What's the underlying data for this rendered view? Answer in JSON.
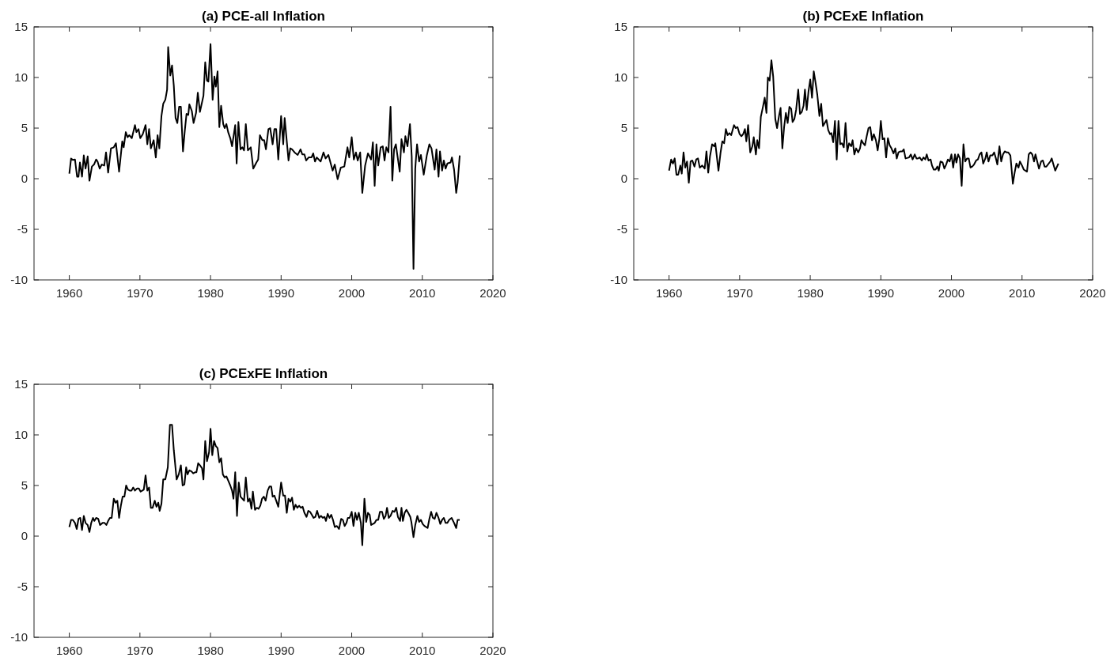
{
  "chart_data": [
    {
      "type": "line",
      "title": "(a) PCE-all Inflation",
      "color": "#000000",
      "xlim": [
        1955,
        2020
      ],
      "xticks": [
        1960,
        1970,
        1980,
        1990,
        2000,
        2010,
        2020
      ],
      "ylim": [
        -10,
        15
      ],
      "yticks": [
        -10,
        -5,
        0,
        5,
        10,
        15
      ],
      "x": [
        1960.0,
        1960.25,
        1960.5,
        1960.8,
        1961.1,
        1961.3,
        1961.5,
        1961.8,
        1962.05,
        1962.3,
        1962.6,
        1962.85,
        1963.2,
        1963.5,
        1963.8,
        1964.0,
        1964.3,
        1964.6,
        1964.95,
        1965.2,
        1965.5,
        1965.9,
        1966.3,
        1966.6,
        1967.05,
        1967.5,
        1967.7,
        1968.0,
        1968.25,
        1968.5,
        1968.85,
        1969.3,
        1969.5,
        1969.8,
        1970.05,
        1970.4,
        1970.8,
        1971.05,
        1971.3,
        1971.55,
        1971.95,
        1972.25,
        1972.5,
        1972.75,
        1973.05,
        1973.3,
        1973.6,
        1973.85,
        1974.0,
        1974.3,
        1974.55,
        1974.8,
        1975.05,
        1975.3,
        1975.55,
        1975.8,
        1976.1,
        1976.35,
        1976.6,
        1976.85,
        1977.0,
        1977.35,
        1977.6,
        1977.95,
        1978.2,
        1978.5,
        1979.0,
        1979.25,
        1979.5,
        1979.7,
        1980.0,
        1980.3,
        1980.55,
        1980.75,
        1981.0,
        1981.25,
        1981.5,
        1981.8,
        1982.0,
        1982.25,
        1982.5,
        1982.8,
        1983.05,
        1983.5,
        1983.7,
        1983.95,
        1984.25,
        1984.5,
        1984.75,
        1985.0,
        1985.3,
        1985.7,
        1986.05,
        1986.5,
        1986.75,
        1987.0,
        1987.35,
        1987.6,
        1987.85,
        1988.2,
        1988.45,
        1988.8,
        1989.05,
        1989.3,
        1989.6,
        1990.0,
        1990.3,
        1990.5,
        1991.05,
        1991.3,
        1991.55,
        1991.9,
        1992.35,
        1992.75,
        1993.0,
        1993.3,
        1993.55,
        1993.9,
        1994.3,
        1994.55,
        1994.8,
        1995.05,
        1995.6,
        1996.0,
        1996.3,
        1996.7,
        1997.3,
        1997.6,
        1998.0,
        1998.45,
        1998.95,
        1999.4,
        1999.65,
        2000.0,
        2000.3,
        2000.6,
        2000.85,
        2001.2,
        2001.5,
        2001.9,
        2002.3,
        2002.75,
        2003.0,
        2003.25,
        2003.5,
        2003.75,
        2004.1,
        2004.4,
        2004.65,
        2004.9,
        2005.2,
        2005.5,
        2005.75,
        2006.0,
        2006.25,
        2006.8,
        2007.05,
        2007.4,
        2007.6,
        2007.9,
        2008.25,
        2008.5,
        2008.75,
        2009.0,
        2009.25,
        2009.55,
        2009.8,
        2010.2,
        2010.65,
        2011.0,
        2011.3,
        2011.75,
        2012.0,
        2012.3,
        2012.5,
        2012.8,
        2013.05,
        2013.3,
        2013.55,
        2014.0,
        2014.2,
        2014.5,
        2014.8,
        2015.0,
        2015.3
      ],
      "values": [
        0.5,
        2.0,
        1.85,
        1.9,
        0.2,
        0.2,
        1.6,
        0.2,
        2.3,
        1.0,
        2.2,
        -0.2,
        1.2,
        1.4,
        1.9,
        1.7,
        1.0,
        1.4,
        1.3,
        2.6,
        0.6,
        3.0,
        3.1,
        3.5,
        0.7,
        3.7,
        3.1,
        4.6,
        4.1,
        4.3,
        4.0,
        5.3,
        4.6,
        4.9,
        4.0,
        4.4,
        5.3,
        3.4,
        4.9,
        3.0,
        3.8,
        2.1,
        4.3,
        3.0,
        6.2,
        7.4,
        7.8,
        8.8,
        13.0,
        10.2,
        11.2,
        9.2,
        6.0,
        5.5,
        7.1,
        7.1,
        2.7,
        4.7,
        6.4,
        6.3,
        7.35,
        6.7,
        5.5,
        6.5,
        8.5,
        6.6,
        8.2,
        11.5,
        9.7,
        9.6,
        13.3,
        7.8,
        10.1,
        9.1,
        10.6,
        5.1,
        7.2,
        5.4,
        5.0,
        5.4,
        4.6,
        4.0,
        3.2,
        5.3,
        1.5,
        5.6,
        2.9,
        3.1,
        2.8,
        5.4,
        2.8,
        3.1,
        1.0,
        1.6,
        1.9,
        4.3,
        3.8,
        3.8,
        2.9,
        4.9,
        5.0,
        3.4,
        4.9,
        4.9,
        1.9,
        6.2,
        3.4,
        6.0,
        1.8,
        3.0,
        2.9,
        2.6,
        2.35,
        2.9,
        2.4,
        2.4,
        1.8,
        2.1,
        2.1,
        2.5,
        1.7,
        2.1,
        1.7,
        2.6,
        2.0,
        2.35,
        0.8,
        1.4,
        -0.05,
        1.1,
        1.2,
        3.1,
        2.1,
        4.1,
        1.9,
        2.6,
        1.8,
        2.6,
        -1.4,
        1.3,
        2.5,
        1.9,
        3.6,
        -0.7,
        3.4,
        1.3,
        3.1,
        3.2,
        1.8,
        3.1,
        2.6,
        7.1,
        -0.2,
        2.9,
        3.4,
        0.7,
        3.9,
        2.6,
        4.2,
        3.2,
        5.4,
        2.2,
        -8.9,
        1.0,
        3.4,
        1.7,
        2.35,
        0.4,
        2.35,
        3.4,
        3.0,
        0.9,
        2.9,
        0.2,
        2.7,
        0.8,
        1.8,
        1.0,
        1.5,
        1.6,
        2.1,
        0.9,
        -1.4,
        -0.4,
        2.3
      ]
    },
    {
      "type": "line",
      "title": "(b) PCExE Inflation",
      "color": "#000000",
      "xlim": [
        1955,
        2020
      ],
      "xticks": [
        1960,
        1970,
        1980,
        1990,
        2000,
        2010,
        2020
      ],
      "ylim": [
        -10,
        15
      ],
      "yticks": [
        -10,
        -5,
        0,
        5,
        10,
        15
      ],
      "x": [
        1960.0,
        1960.3,
        1960.55,
        1960.8,
        1961.05,
        1961.3,
        1961.6,
        1961.8,
        1962.05,
        1962.3,
        1962.55,
        1962.8,
        1963.05,
        1963.3,
        1963.6,
        1963.85,
        1964.1,
        1964.35,
        1964.7,
        1965.05,
        1965.3,
        1965.55,
        1965.8,
        1966.1,
        1966.4,
        1966.55,
        1967.0,
        1967.3,
        1967.55,
        1967.8,
        1968.05,
        1968.3,
        1968.55,
        1968.8,
        1969.2,
        1969.45,
        1969.7,
        1970.0,
        1970.25,
        1970.5,
        1970.75,
        1970.95,
        1971.2,
        1971.5,
        1971.8,
        1972.0,
        1972.3,
        1972.5,
        1972.75,
        1973.0,
        1973.3,
        1973.55,
        1973.8,
        1974.0,
        1974.25,
        1974.5,
        1974.75,
        1975.05,
        1975.3,
        1975.6,
        1975.8,
        1976.05,
        1976.3,
        1976.55,
        1976.8,
        1977.05,
        1977.3,
        1977.5,
        1977.75,
        1978.0,
        1978.3,
        1978.55,
        1978.8,
        1979.05,
        1979.25,
        1979.5,
        1979.75,
        1980.0,
        1980.25,
        1980.5,
        1980.75,
        1981.0,
        1981.3,
        1981.55,
        1981.8,
        1982.3,
        1982.55,
        1982.8,
        1983.0,
        1983.25,
        1983.5,
        1983.75,
        1984.0,
        1984.25,
        1984.5,
        1984.75,
        1985.0,
        1985.25,
        1985.5,
        1985.8,
        1986.0,
        1986.25,
        1986.5,
        1986.8,
        1987.05,
        1987.25,
        1987.5,
        1987.75,
        1988.0,
        1988.25,
        1988.5,
        1988.75,
        1989.0,
        1989.3,
        1989.55,
        1989.8,
        1990.0,
        1990.25,
        1990.5,
        1990.75,
        1991.0,
        1991.25,
        1991.5,
        1991.8,
        1992.05,
        1992.25,
        1992.5,
        1992.8,
        1993.05,
        1993.25,
        1993.5,
        1994.0,
        1994.25,
        1994.5,
        1994.8,
        1995.05,
        1995.25,
        1995.5,
        1995.8,
        1996.05,
        1996.3,
        1996.5,
        1996.75,
        1997.05,
        1997.25,
        1997.5,
        1997.75,
        1998.0,
        1998.2,
        1998.45,
        1998.75,
        1999.0,
        1999.25,
        1999.5,
        1999.75,
        2000.0,
        2000.25,
        2000.5,
        2000.7,
        2000.95,
        2001.2,
        2001.45,
        2001.7,
        2001.95,
        2002.2,
        2002.45,
        2002.7,
        2002.95,
        2003.2,
        2003.5,
        2003.75,
        2004.0,
        2004.25,
        2004.5,
        2004.8,
        2005.0,
        2005.25,
        2005.5,
        2005.8,
        2006.05,
        2006.3,
        2006.5,
        2006.8,
        2007.05,
        2007.3,
        2007.55,
        2007.8,
        2008.05,
        2008.35,
        2008.7,
        2008.95,
        2009.2,
        2009.5,
        2009.7,
        2010.0,
        2010.25,
        2010.7,
        2010.95,
        2011.2,
        2011.45,
        2011.7,
        2011.9,
        2012.15,
        2012.4,
        2012.7,
        2012.95,
        2013.2,
        2013.45,
        2014.0,
        2014.2,
        2014.7,
        2015.15
      ],
      "values": [
        0.8,
        1.9,
        1.5,
        2.0,
        0.4,
        0.4,
        1.3,
        0.5,
        2.6,
        1.1,
        1.7,
        -0.4,
        1.7,
        1.8,
        1.2,
        1.9,
        2.0,
        1.1,
        1.3,
        1.0,
        2.7,
        0.6,
        2.2,
        3.4,
        3.2,
        3.5,
        0.8,
        2.6,
        3.7,
        3.5,
        4.9,
        4.3,
        4.5,
        4.3,
        5.3,
        5.0,
        5.1,
        4.4,
        4.2,
        4.4,
        4.9,
        3.7,
        5.3,
        2.6,
        3.2,
        4.1,
        2.4,
        3.8,
        3.0,
        6.1,
        7.1,
        8.0,
        6.5,
        10.0,
        9.7,
        11.7,
        10.1,
        5.9,
        5.0,
        6.3,
        7.0,
        3.0,
        5.1,
        6.5,
        5.5,
        7.1,
        6.9,
        5.6,
        5.9,
        6.8,
        8.8,
        6.4,
        6.6,
        7.2,
        8.8,
        6.8,
        8.6,
        9.8,
        8.0,
        10.6,
        9.5,
        8.3,
        6.2,
        7.4,
        5.2,
        5.8,
        4.8,
        4.4,
        4.5,
        3.6,
        5.7,
        1.9,
        5.7,
        3.4,
        3.5,
        3.1,
        5.5,
        2.7,
        3.5,
        3.2,
        3.8,
        2.4,
        3.0,
        2.6,
        3.0,
        3.8,
        3.5,
        3.3,
        4.2,
        5.0,
        5.1,
        3.8,
        4.4,
        3.8,
        2.8,
        4.0,
        5.7,
        3.9,
        4.0,
        2.1,
        4.0,
        3.3,
        3.0,
        2.5,
        3.0,
        2.0,
        2.6,
        2.7,
        2.7,
        2.9,
        2.0,
        2.1,
        2.4,
        1.9,
        2.4,
        2.0,
        2.0,
        2.1,
        1.8,
        2.1,
        1.9,
        2.4,
        1.8,
        1.9,
        1.3,
        0.9,
        0.9,
        1.2,
        0.8,
        1.7,
        1.6,
        1.0,
        1.4,
        1.9,
        1.7,
        2.4,
        1.1,
        2.4,
        1.6,
        2.4,
        2.0,
        -0.7,
        3.4,
        1.7,
        2.0,
        2.0,
        1.1,
        1.2,
        1.4,
        1.8,
        1.9,
        2.4,
        2.6,
        1.5,
        2.0,
        2.6,
        1.7,
        2.3,
        2.3,
        2.6,
        2.0,
        1.4,
        3.2,
        1.7,
        2.4,
        2.7,
        2.6,
        2.6,
        2.3,
        -0.5,
        0.6,
        1.5,
        1.1,
        1.7,
        1.3,
        0.9,
        0.7,
        2.4,
        2.6,
        2.4,
        1.7,
        2.4,
        1.7,
        1.0,
        1.7,
        1.8,
        1.2,
        1.2,
        1.7,
        2.0,
        0.8,
        1.5
      ]
    },
    {
      "type": "line",
      "title": "(c) PCExFE Inflation",
      "color": "#000000",
      "xlim": [
        1955,
        2020
      ],
      "xticks": [
        1960,
        1970,
        1980,
        1990,
        2000,
        2010,
        2020
      ],
      "ylim": [
        -10,
        15
      ],
      "yticks": [
        -10,
        -5,
        0,
        5,
        10,
        15
      ],
      "x": [
        1960.0,
        1960.25,
        1960.5,
        1960.8,
        1961.05,
        1961.3,
        1961.55,
        1961.8,
        1962.05,
        1962.3,
        1962.6,
        1962.85,
        1963.1,
        1963.35,
        1963.55,
        1963.8,
        1964.1,
        1964.35,
        1964.7,
        1965.0,
        1965.25,
        1965.5,
        1965.75,
        1966.0,
        1966.3,
        1966.55,
        1966.8,
        1967.05,
        1967.3,
        1967.55,
        1967.8,
        1968.05,
        1968.3,
        1968.55,
        1968.8,
        1969.05,
        1969.3,
        1969.6,
        1969.85,
        1970.1,
        1970.35,
        1970.55,
        1970.8,
        1971.05,
        1971.3,
        1971.55,
        1971.8,
        1972.1,
        1972.35,
        1972.6,
        1972.8,
        1973.05,
        1973.3,
        1973.6,
        1973.95,
        1974.25,
        1974.55,
        1974.8,
        1975.2,
        1975.5,
        1975.8,
        1976.05,
        1976.3,
        1976.55,
        1976.75,
        1977.0,
        1977.3,
        1977.55,
        1977.8,
        1978.0,
        1978.25,
        1978.5,
        1978.8,
        1979.0,
        1979.25,
        1979.5,
        1979.8,
        1980.0,
        1980.25,
        1980.5,
        1980.75,
        1981.0,
        1981.25,
        1981.5,
        1981.75,
        1982.0,
        1982.25,
        1982.5,
        1982.8,
        1983.05,
        1983.25,
        1983.5,
        1983.75,
        1984.0,
        1984.25,
        1984.5,
        1984.75,
        1985.0,
        1985.3,
        1985.55,
        1985.8,
        1986.0,
        1986.3,
        1986.55,
        1986.8,
        1987.05,
        1987.3,
        1987.55,
        1987.8,
        1988.1,
        1988.35,
        1988.6,
        1988.8,
        1989.05,
        1989.3,
        1989.6,
        1990.0,
        1990.3,
        1990.55,
        1990.8,
        1991.05,
        1991.3,
        1991.55,
        1991.8,
        1992.05,
        1992.3,
        1992.55,
        1992.8,
        1993.05,
        1993.3,
        1993.6,
        1993.85,
        1994.1,
        1994.35,
        1994.6,
        1994.85,
        1995.1,
        1995.4,
        1995.65,
        1995.9,
        1996.15,
        1996.35,
        1996.6,
        1996.85,
        1997.1,
        1997.35,
        1997.6,
        1997.9,
        1998.2,
        1998.5,
        1998.75,
        1999.0,
        1999.25,
        1999.45,
        1999.7,
        2000.0,
        2000.25,
        2000.5,
        2000.75,
        2001.0,
        2001.3,
        2001.5,
        2001.8,
        2002.05,
        2002.3,
        2002.55,
        2002.75,
        2003.0,
        2003.25,
        2003.5,
        2003.75,
        2004.0,
        2004.3,
        2004.55,
        2004.8,
        2005.0,
        2005.25,
        2005.5,
        2005.8,
        2006.05,
        2006.3,
        2006.55,
        2006.85,
        2007.05,
        2007.25,
        2007.5,
        2007.75,
        2008.0,
        2008.3,
        2008.45,
        2008.75,
        2009.0,
        2009.3,
        2009.55,
        2009.8,
        2010.05,
        2010.3,
        2010.75,
        2011.0,
        2011.25,
        2011.5,
        2011.75,
        2012.0,
        2012.3,
        2012.55,
        2012.8,
        2013.05,
        2013.3,
        2013.55,
        2013.8,
        2014.15,
        2014.5,
        2014.8,
        2015.0,
        2015.3
      ],
      "values": [
        0.9,
        1.6,
        1.6,
        1.3,
        0.7,
        1.7,
        1.8,
        0.6,
        2.0,
        1.3,
        1.1,
        0.4,
        1.3,
        1.8,
        1.5,
        1.8,
        1.7,
        1.1,
        1.3,
        1.3,
        1.1,
        1.5,
        1.8,
        1.8,
        3.7,
        3.3,
        3.5,
        1.8,
        3.0,
        3.9,
        3.9,
        5.0,
        4.6,
        4.5,
        4.5,
        4.8,
        4.5,
        4.7,
        4.7,
        4.4,
        4.5,
        4.6,
        6.0,
        4.5,
        4.8,
        2.8,
        2.8,
        3.5,
        2.9,
        3.3,
        2.5,
        3.2,
        5.6,
        5.6,
        6.8,
        11.0,
        11.0,
        8.5,
        5.6,
        6.1,
        7.0,
        5.0,
        5.1,
        6.8,
        6.1,
        6.5,
        6.4,
        6.2,
        6.3,
        6.3,
        7.2,
        7.0,
        6.7,
        5.6,
        9.4,
        7.4,
        8.3,
        10.6,
        8.0,
        9.4,
        8.9,
        8.7,
        7.3,
        7.7,
        6.1,
        5.8,
        5.9,
        5.5,
        5.0,
        4.5,
        3.7,
        6.3,
        2.0,
        5.3,
        3.9,
        3.7,
        3.5,
        5.8,
        3.4,
        3.7,
        2.7,
        4.4,
        2.6,
        2.8,
        2.7,
        3.0,
        3.7,
        3.9,
        3.5,
        4.5,
        4.9,
        4.9,
        3.9,
        4.0,
        3.5,
        2.9,
        5.3,
        4.0,
        4.0,
        2.3,
        3.7,
        3.4,
        3.8,
        2.6,
        3.1,
        2.8,
        3.0,
        2.8,
        2.9,
        2.3,
        1.9,
        2.5,
        2.4,
        2.1,
        1.8,
        1.9,
        2.5,
        1.8,
        2.0,
        1.8,
        1.9,
        1.5,
        2.2,
        1.8,
        2.1,
        1.6,
        0.9,
        1.0,
        0.7,
        1.7,
        1.6,
        1.0,
        1.3,
        1.8,
        1.8,
        2.4,
        1.0,
        2.3,
        1.6,
        2.3,
        1.3,
        -0.9,
        3.7,
        1.4,
        2.3,
        2.1,
        1.1,
        1.2,
        1.3,
        1.6,
        1.6,
        2.4,
        2.4,
        1.7,
        2.0,
        2.8,
        1.8,
        2.0,
        2.5,
        2.4,
        2.8,
        1.9,
        1.5,
        2.8,
        1.5,
        2.3,
        2.6,
        2.3,
        1.9,
        1.4,
        -0.1,
        1.1,
        2.0,
        1.4,
        1.6,
        1.2,
        1.0,
        0.8,
        1.7,
        2.4,
        1.8,
        1.7,
        2.3,
        1.8,
        1.2,
        1.6,
        1.8,
        1.3,
        1.3,
        1.6,
        1.8,
        1.3,
        0.8,
        1.6,
        1.6
      ]
    }
  ]
}
